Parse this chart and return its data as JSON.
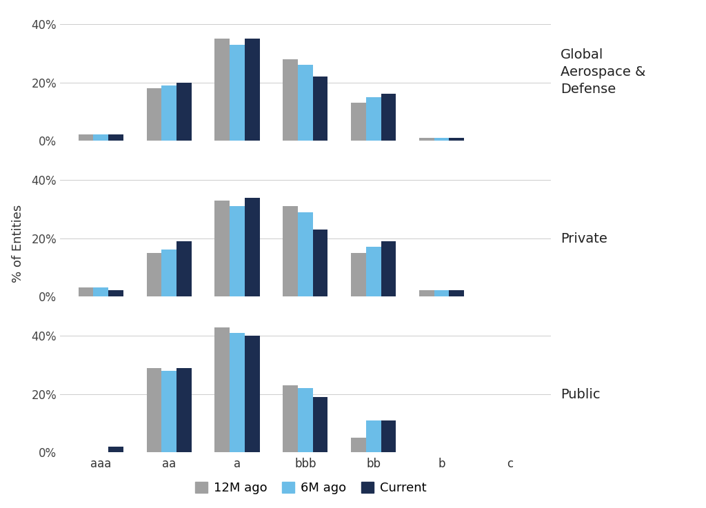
{
  "categories": [
    "aaa",
    "aa",
    "a",
    "bbb",
    "bb",
    "b",
    "c"
  ],
  "panels": [
    {
      "label": "Global\nAerospace &\nDefense",
      "data": {
        "12M ago": [
          2,
          18,
          35,
          28,
          13,
          1,
          0
        ],
        "6M ago": [
          2,
          19,
          33,
          26,
          15,
          1,
          0
        ],
        "Current": [
          2,
          20,
          35,
          22,
          16,
          1,
          0
        ]
      }
    },
    {
      "label": "Private",
      "data": {
        "12M ago": [
          3,
          15,
          33,
          31,
          15,
          2,
          0
        ],
        "6M ago": [
          3,
          16,
          31,
          29,
          17,
          2,
          0
        ],
        "Current": [
          2,
          19,
          34,
          23,
          19,
          2,
          0
        ]
      }
    },
    {
      "label": "Public",
      "data": {
        "12M ago": [
          0,
          29,
          43,
          23,
          5,
          0,
          0
        ],
        "6M ago": [
          0,
          28,
          41,
          22,
          11,
          0,
          0
        ],
        "Current": [
          2,
          29,
          40,
          19,
          11,
          0,
          0
        ]
      }
    }
  ],
  "series_labels": [
    "12M ago",
    "6M ago",
    "Current"
  ],
  "series_colors": [
    "#A0A0A0",
    "#6BBDE8",
    "#1C2D50"
  ],
  "ylabel": "% of Entities",
  "ylim": [
    0,
    44
  ],
  "yticks": [
    0,
    20,
    40
  ],
  "background_color": "#FFFFFF",
  "grid_color": "#CCCCCC",
  "panel_label_fontsize": 14,
  "ylabel_fontsize": 13,
  "tick_fontsize": 12,
  "legend_fontsize": 13
}
